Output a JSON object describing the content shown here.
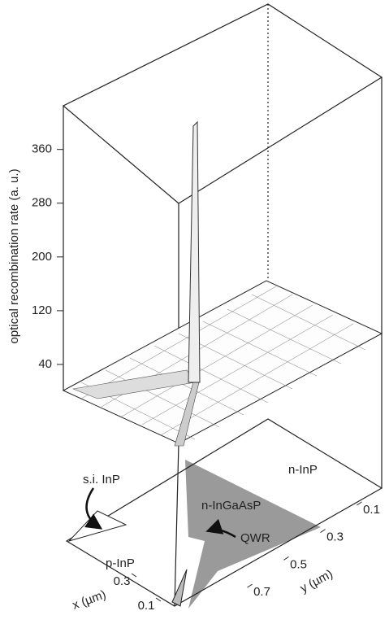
{
  "chart_data": {
    "type": "surface3d",
    "z_label": "optical recombination rate (a. u.)",
    "x_label": "x (µm)",
    "y_label": "y (µm)",
    "zlim": [
      0,
      425
    ],
    "zticks": [
      40,
      120,
      200,
      280,
      360
    ],
    "xlim": [
      0.4,
      0.0
    ],
    "xticks": [
      0.3,
      0.1
    ],
    "ylim": [
      0.8,
      0.0
    ],
    "yticks": [
      0.1,
      0.3,
      0.5,
      0.7
    ],
    "regions": [
      "n-InP",
      "n-InGaAsP",
      "p-InP",
      "s.i. InP",
      "QWR"
    ]
  }
}
